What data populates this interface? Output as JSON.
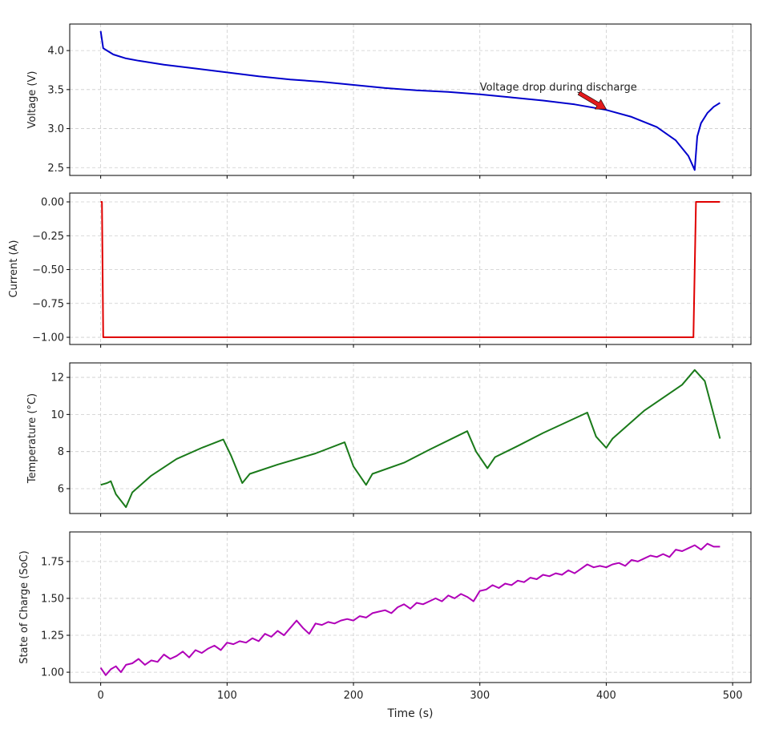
{
  "chart_data": [
    {
      "type": "line",
      "ylabel": "Voltage (V)",
      "xlim": [
        -24.5,
        514.5
      ],
      "ylim": [
        2.4,
        4.34
      ],
      "yticks": [
        2.5,
        3.0,
        3.5,
        4.0
      ],
      "ytick_labels": [
        "2.5",
        "3.0",
        "3.5",
        "4.0"
      ],
      "color": "#0000cc",
      "grid": true,
      "x": [
        0,
        2,
        5,
        10,
        20,
        30,
        50,
        75,
        100,
        125,
        150,
        175,
        200,
        225,
        250,
        275,
        300,
        325,
        350,
        375,
        400,
        420,
        440,
        455,
        465,
        470,
        472,
        475,
        480,
        485,
        490
      ],
      "y": [
        4.25,
        4.03,
        4.0,
        3.95,
        3.9,
        3.87,
        3.82,
        3.77,
        3.72,
        3.67,
        3.63,
        3.6,
        3.56,
        3.52,
        3.49,
        3.47,
        3.44,
        3.4,
        3.36,
        3.31,
        3.24,
        3.15,
        3.02,
        2.85,
        2.65,
        2.47,
        2.9,
        3.07,
        3.2,
        3.28,
        3.33
      ],
      "annotation": {
        "text": "Voltage drop during discharge",
        "xytext": [
          300,
          3.5
        ],
        "xy": [
          400,
          3.25
        ],
        "arrow_color": "#e31a1c"
      }
    },
    {
      "type": "line",
      "ylabel": "Current (A)",
      "xlim": [
        -24.5,
        514.5
      ],
      "ylim": [
        -1.053,
        0.065
      ],
      "yticks": [
        -1.0,
        -0.75,
        -0.5,
        -0.25,
        0.0
      ],
      "ytick_labels": [
        "−1.00",
        "−0.75",
        "−0.50",
        "−0.25",
        "0.00"
      ],
      "color": "#e00000",
      "grid": true,
      "x": [
        0,
        1,
        2,
        100,
        200,
        300,
        400,
        469,
        470,
        471,
        480,
        490
      ],
      "y": [
        0,
        0,
        -1,
        -1,
        -1,
        -1,
        -1,
        -1,
        -0.5,
        0,
        0,
        0
      ]
    },
    {
      "type": "line",
      "ylabel": "Temperature (°C)",
      "xlim": [
        -24.5,
        514.5
      ],
      "ylim": [
        4.66,
        12.78
      ],
      "yticks": [
        6,
        8,
        10,
        12
      ],
      "ytick_labels": [
        "6",
        "8",
        "10",
        "12"
      ],
      "color": "#1a7a1a",
      "grid": true,
      "x": [
        0,
        5,
        8,
        12,
        20,
        25,
        40,
        60,
        80,
        97,
        103,
        112,
        118,
        140,
        170,
        193,
        200,
        210,
        215,
        240,
        260,
        290,
        297,
        306,
        312,
        330,
        350,
        385,
        392,
        400,
        405,
        430,
        460,
        470,
        478,
        490
      ],
      "y": [
        6.2,
        6.3,
        6.4,
        5.7,
        5.0,
        5.8,
        6.7,
        7.6,
        8.2,
        8.65,
        7.8,
        6.3,
        6.8,
        7.3,
        7.9,
        8.5,
        7.2,
        6.2,
        6.8,
        7.4,
        8.1,
        9.1,
        8.0,
        7.1,
        7.7,
        8.3,
        9.0,
        10.1,
        8.8,
        8.2,
        8.7,
        10.2,
        11.6,
        12.4,
        11.8,
        8.7
      ]
    },
    {
      "type": "line",
      "ylabel": "State of Charge (SoC)",
      "xlabel": "Time (s)",
      "xlim": [
        -24.5,
        514.5
      ],
      "ylim": [
        0.93,
        1.95
      ],
      "yticks": [
        1.0,
        1.25,
        1.5,
        1.75
      ],
      "ytick_labels": [
        "1.00",
        "1.25",
        "1.50",
        "1.75"
      ],
      "xticks": [
        0,
        100,
        200,
        300,
        400,
        500
      ],
      "xtick_labels": [
        "0",
        "100",
        "200",
        "300",
        "400",
        "500"
      ],
      "color": "#b000b8",
      "grid": true,
      "x": [
        0,
        4,
        8,
        12,
        16,
        20,
        25,
        30,
        35,
        40,
        45,
        50,
        55,
        60,
        65,
        70,
        75,
        80,
        85,
        90,
        95,
        100,
        105,
        110,
        115,
        120,
        125,
        130,
        135,
        140,
        145,
        150,
        155,
        160,
        165,
        170,
        175,
        180,
        185,
        190,
        195,
        200,
        205,
        210,
        215,
        220,
        225,
        230,
        235,
        240,
        245,
        250,
        255,
        260,
        265,
        270,
        275,
        280,
        285,
        290,
        295,
        300,
        305,
        310,
        315,
        320,
        325,
        330,
        335,
        340,
        345,
        350,
        355,
        360,
        365,
        370,
        375,
        380,
        385,
        390,
        395,
        400,
        405,
        410,
        415,
        420,
        425,
        430,
        435,
        440,
        445,
        450,
        455,
        460,
        465,
        470,
        475,
        480,
        485,
        490
      ],
      "y": [
        1.03,
        0.98,
        1.02,
        1.04,
        1.0,
        1.05,
        1.06,
        1.09,
        1.05,
        1.08,
        1.07,
        1.12,
        1.09,
        1.11,
        1.14,
        1.1,
        1.15,
        1.13,
        1.16,
        1.18,
        1.15,
        1.2,
        1.19,
        1.21,
        1.2,
        1.23,
        1.21,
        1.26,
        1.24,
        1.28,
        1.25,
        1.3,
        1.35,
        1.3,
        1.26,
        1.33,
        1.32,
        1.34,
        1.33,
        1.35,
        1.36,
        1.35,
        1.38,
        1.37,
        1.4,
        1.41,
        1.42,
        1.4,
        1.44,
        1.46,
        1.43,
        1.47,
        1.46,
        1.48,
        1.5,
        1.48,
        1.52,
        1.5,
        1.53,
        1.51,
        1.48,
        1.55,
        1.56,
        1.59,
        1.57,
        1.6,
        1.59,
        1.62,
        1.61,
        1.64,
        1.63,
        1.66,
        1.65,
        1.67,
        1.66,
        1.69,
        1.67,
        1.7,
        1.73,
        1.71,
        1.72,
        1.71,
        1.73,
        1.74,
        1.72,
        1.76,
        1.75,
        1.77,
        1.79,
        1.78,
        1.8,
        1.78,
        1.83,
        1.82,
        1.84,
        1.86,
        1.83,
        1.87,
        1.85,
        1.85
      ]
    }
  ]
}
